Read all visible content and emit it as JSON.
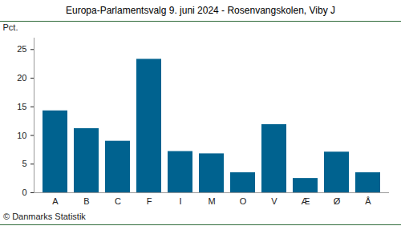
{
  "chart_data": {
    "type": "bar",
    "title": "Europa-Parlamentsvalg 9. juni 2024 - Rosenvangskolen, Viby J",
    "y_label": "Pct.",
    "caption": "© Danmarks Statistik",
    "categories": [
      "A",
      "B",
      "C",
      "F",
      "I",
      "M",
      "O",
      "V",
      "Æ",
      "Ø",
      "Å"
    ],
    "values": [
      14.3,
      11.2,
      9.0,
      23.3,
      7.2,
      6.8,
      3.5,
      11.9,
      2.5,
      7.1,
      3.5
    ],
    "color": "#00628f",
    "ylim": [
      0,
      27
    ],
    "yticks": [
      0,
      5,
      10,
      15,
      20,
      25
    ],
    "grid": false
  }
}
